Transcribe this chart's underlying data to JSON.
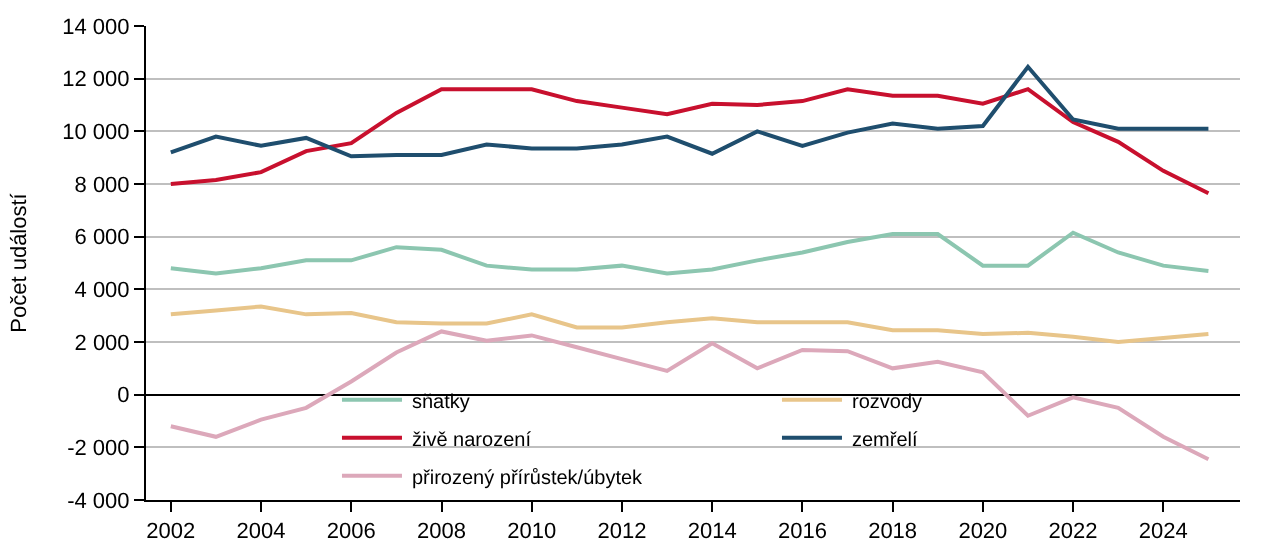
{
  "chart_data": {
    "type": "line",
    "ylabel": "Počet událostí",
    "x": [
      2002,
      2003,
      2004,
      2005,
      2006,
      2007,
      2008,
      2009,
      2010,
      2011,
      2012,
      2013,
      2014,
      2015,
      2016,
      2017,
      2018,
      2019,
      2020,
      2021,
      2022,
      2023,
      2024,
      2025
    ],
    "series": [
      {
        "name": "sňatky",
        "color": "#8cc6b0",
        "values": [
          4800,
          4600,
          4800,
          5100,
          5100,
          5600,
          5500,
          4900,
          4750,
          4750,
          4900,
          4600,
          4750,
          5100,
          5400,
          5800,
          6100,
          6100,
          4900,
          4900,
          6150,
          5400,
          4900,
          4700
        ]
      },
      {
        "name": "rozvody",
        "color": "#e8c58a",
        "values": [
          3050,
          3200,
          3350,
          3050,
          3100,
          2750,
          2700,
          2700,
          3050,
          2550,
          2550,
          2750,
          2900,
          2750,
          2750,
          2750,
          2450,
          2450,
          2300,
          2350,
          2200,
          2000,
          2150,
          2300
        ]
      },
      {
        "name": "živě narození",
        "color": "#c8102e",
        "values": [
          8000,
          8150,
          8450,
          9250,
          9550,
          10700,
          11600,
          11600,
          11600,
          11150,
          10900,
          10650,
          11050,
          11000,
          11150,
          11600,
          11350,
          11350,
          11050,
          11600,
          10350,
          9600,
          8500,
          7650
        ]
      },
      {
        "name": "zemřelí",
        "color": "#1f4e6e",
        "values": [
          9200,
          9800,
          9450,
          9750,
          9050,
          9100,
          9100,
          9500,
          9350,
          9350,
          9500,
          9800,
          9150,
          10000,
          9450,
          9950,
          10300,
          10100,
          10200,
          12450,
          10450,
          10100,
          10100,
          10100
        ]
      },
      {
        "name": "přirozený přírůstek/úbytek",
        "color": "#dca8ba",
        "values": [
          -1200,
          -1600,
          -950,
          -500,
          500,
          1600,
          2400,
          2050,
          2250,
          1800,
          1350,
          900,
          1950,
          1000,
          1700,
          1650,
          1000,
          1250,
          850,
          -800,
          -100,
          -500,
          -1600,
          -2450
        ]
      }
    ],
    "xlim": [
      2001.45,
      2025.7
    ],
    "xticks": [
      2002,
      2004,
      2006,
      2008,
      2010,
      2012,
      2014,
      2016,
      2018,
      2020,
      2022,
      2024
    ],
    "ylim": [
      -4000,
      14000
    ],
    "yticks": [
      {
        "value": -4000,
        "label": "-4 000"
      },
      {
        "value": -2000,
        "label": "-2 000"
      },
      0,
      {
        "value": 2000,
        "label": "2 000"
      },
      {
        "value": 4000,
        "label": "4 000"
      },
      {
        "value": 6000,
        "label": "6 000"
      },
      {
        "value": 8000,
        "label": "8 000"
      },
      {
        "value": 10000,
        "label": "10 000"
      },
      {
        "value": 12000,
        "label": "12 000"
      },
      {
        "value": 14000,
        "label": "14 000"
      }
    ],
    "grid": "y",
    "legend": "bottom",
    "line_style": "solid",
    "marker": "none"
  }
}
